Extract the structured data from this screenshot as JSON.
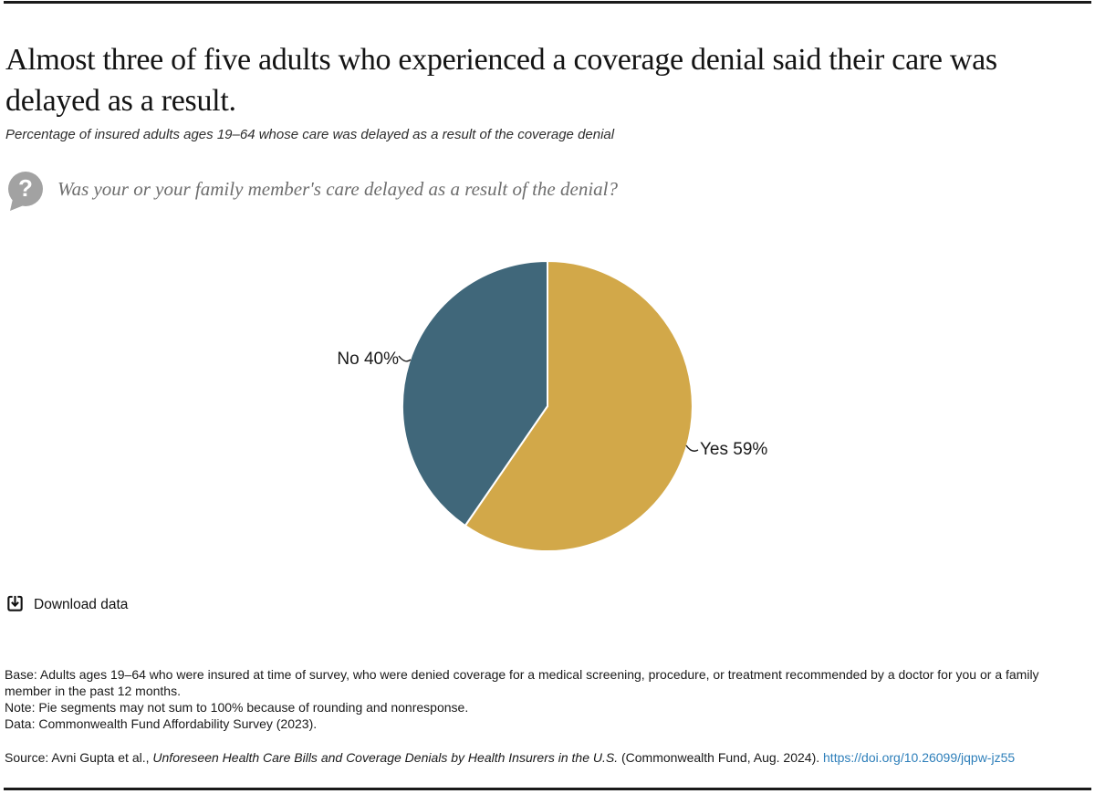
{
  "page": {
    "title": "Almost three of five adults who experienced a coverage denial said their care was delayed as a result."
  },
  "chart_data": {
    "type": "pie",
    "title": "Percentage of insured adults ages 19–64 whose care was delayed as a result of the coverage denial",
    "question": "Was your or your family member's care delayed as a result of the denial?",
    "slices": [
      {
        "label": "Yes",
        "value": 59,
        "display": "Yes 59%",
        "color": "#D2A849"
      },
      {
        "label": "No",
        "value": 40,
        "display": "No 40%",
        "color": "#40677A"
      }
    ],
    "value_unit": "%",
    "start_angle_deg": 0,
    "direction": "clockwise",
    "legend": "none",
    "slice_border_color": "#FFFFFF"
  },
  "controls": {
    "download_label": "Download data"
  },
  "footer": {
    "base": "Base: Adults ages 19–64 who were insured at time of survey, who were denied coverage for a medical screening, procedure, or treatment recommended by a doctor for you or a family member in the past 12 months.",
    "note": "Note: Pie segments may not sum to 100% because of rounding and nonresponse.",
    "data": "Data: Commonwealth Fund Affordability Survey (2023).",
    "source": {
      "prefix": "Source: Avni Gupta et al., ",
      "citation": "Unforeseen Health Care Bills and Coverage Denials by Health Insurers in the U.S.",
      "suffix": " (Commonwealth Fund, Aug. 2024). ",
      "link": "https://doi.org/10.26099/jqpw-jz55"
    }
  },
  "colors": {
    "rule": "#1A1A1A",
    "link_blue": "#2E7FBA",
    "question_icon_gray": "#A2A2A2",
    "question_text_gray": "#6E6E6E",
    "label_text": "#1A1A1A"
  }
}
